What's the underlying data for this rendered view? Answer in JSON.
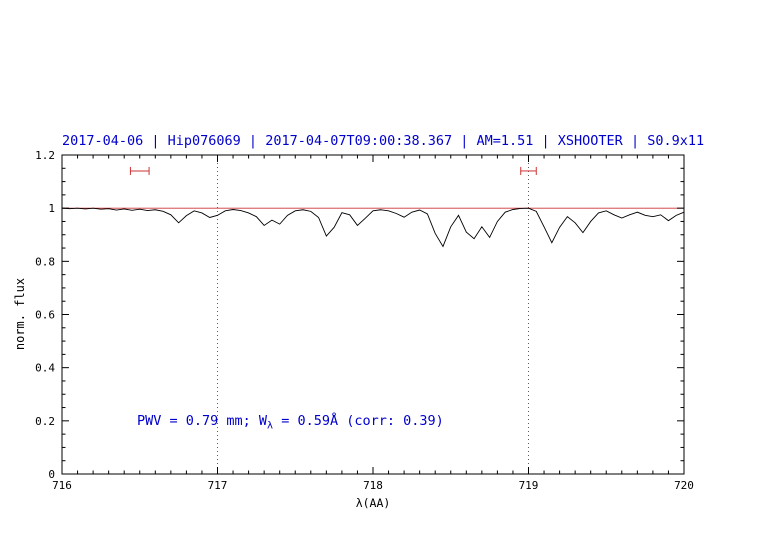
{
  "colors": {
    "title_blue": "#0000cc",
    "annotation_blue": "#0000cc",
    "red": "#cc3333",
    "spectrum": "#000000",
    "axis": "#000000"
  },
  "chart_data": {
    "type": "line",
    "title": "2017-04-06 | Hip076069 | 2017-04-07T09:00:38.367 | AM=1.51 | XSHOOTER | S0.9x11",
    "xlabel": "λ(AA)",
    "ylabel": "norm. flux",
    "xlim": [
      716,
      720
    ],
    "ylim": [
      0,
      1.2
    ],
    "grid": false,
    "legend": null,
    "xtick_values": [
      716,
      717,
      718,
      719,
      720
    ],
    "xtick_labels": [
      "716",
      "717",
      "718",
      "719",
      "720"
    ],
    "ytick_values": [
      0,
      0.2,
      0.4,
      0.6,
      0.8,
      1,
      1.2
    ],
    "ytick_labels": [
      "0",
      "0.2",
      "0.4",
      "0.6",
      "0.8",
      "1",
      "1.2"
    ],
    "minor_x_step": 0.1,
    "minor_y_step": 0.05,
    "dotted_vlines": [
      717,
      719
    ],
    "continuum_line_y": 1.0,
    "ew_markers": [
      {
        "x1": 716.44,
        "x2": 716.56,
        "y": 1.14
      },
      {
        "x1": 718.95,
        "x2": 719.05,
        "y": 1.14
      }
    ],
    "annotation": {
      "pre": "PWV = 0.79 mm; W",
      "sub": "λ",
      "post": " = 0.59Å (corr: 0.39)"
    },
    "series": [
      {
        "name": "spectrum",
        "x": [
          716.0,
          716.05,
          716.1,
          716.15,
          716.2,
          716.25,
          716.3,
          716.35,
          716.4,
          716.45,
          716.5,
          716.55,
          716.6,
          716.65,
          716.7,
          716.75,
          716.8,
          716.85,
          716.9,
          716.95,
          717.0,
          717.05,
          717.1,
          717.15,
          717.2,
          717.25,
          717.3,
          717.35,
          717.4,
          717.45,
          717.5,
          717.55,
          717.6,
          717.65,
          717.7,
          717.75,
          717.8,
          717.85,
          717.9,
          717.95,
          718.0,
          718.05,
          718.1,
          718.15,
          718.2,
          718.25,
          718.3,
          718.35,
          718.4,
          718.45,
          718.5,
          718.55,
          718.6,
          718.65,
          718.7,
          718.75,
          718.8,
          718.85,
          718.9,
          718.95,
          719.0,
          719.05,
          719.1,
          719.15,
          719.2,
          719.25,
          719.3,
          719.35,
          719.4,
          719.45,
          719.5,
          719.55,
          719.6,
          719.65,
          719.7,
          719.75,
          719.8,
          719.85,
          719.9,
          719.95,
          720.0
        ],
        "y": [
          1.0,
          0.998,
          1.0,
          0.997,
          1.0,
          0.996,
          0.998,
          0.993,
          0.997,
          0.992,
          0.996,
          0.991,
          0.994,
          0.988,
          0.975,
          0.945,
          0.972,
          0.99,
          0.982,
          0.965,
          0.973,
          0.99,
          0.995,
          0.991,
          0.982,
          0.968,
          0.935,
          0.955,
          0.94,
          0.973,
          0.99,
          0.994,
          0.988,
          0.965,
          0.895,
          0.928,
          0.983,
          0.975,
          0.935,
          0.962,
          0.99,
          0.994,
          0.99,
          0.98,
          0.966,
          0.985,
          0.993,
          0.978,
          0.905,
          0.856,
          0.93,
          0.973,
          0.91,
          0.885,
          0.93,
          0.89,
          0.95,
          0.985,
          0.995,
          0.999,
          1.0,
          0.988,
          0.93,
          0.87,
          0.928,
          0.968,
          0.945,
          0.908,
          0.95,
          0.982,
          0.99,
          0.975,
          0.963,
          0.975,
          0.985,
          0.973,
          0.968,
          0.975,
          0.953,
          0.973,
          0.985
        ]
      }
    ]
  }
}
